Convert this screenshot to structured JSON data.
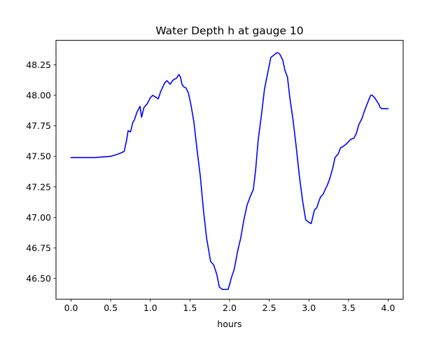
{
  "chart_data": {
    "type": "line",
    "title": "Water Depth h at gauge 10",
    "xlabel": "hours",
    "ylabel": "",
    "xlim": [
      -0.19,
      4.19
    ],
    "ylim": [
      46.33,
      48.45
    ],
    "grid": false,
    "x_ticks": [
      0.0,
      0.5,
      1.0,
      1.5,
      2.0,
      2.5,
      3.0,
      3.5,
      4.0
    ],
    "x_tick_labels": [
      "0.0",
      "0.5",
      "1.0",
      "1.5",
      "2.0",
      "2.5",
      "3.0",
      "3.5",
      "4.0"
    ],
    "y_ticks": [
      46.5,
      46.75,
      47.0,
      47.25,
      47.5,
      47.75,
      48.0,
      48.25
    ],
    "y_tick_labels": [
      "46.50",
      "46.75",
      "47.00",
      "47.25",
      "47.50",
      "47.75",
      "48.00",
      "48.25"
    ],
    "series": [
      {
        "color": "#0000ff",
        "x": [
          0.0,
          0.3,
          0.5,
          0.6,
          0.67,
          0.7,
          0.72,
          0.75,
          0.78,
          0.8,
          0.83,
          0.87,
          0.89,
          0.92,
          0.96,
          1.0,
          1.03,
          1.08,
          1.1,
          1.13,
          1.18,
          1.21,
          1.25,
          1.28,
          1.3,
          1.33,
          1.36,
          1.38,
          1.4,
          1.42,
          1.45,
          1.48,
          1.51,
          1.55,
          1.59,
          1.63,
          1.67,
          1.71,
          1.76,
          1.8,
          1.84,
          1.87,
          1.91,
          1.95,
          1.98,
          2.0,
          2.02,
          2.06,
          2.1,
          2.14,
          2.18,
          2.22,
          2.26,
          2.3,
          2.33,
          2.36,
          2.4,
          2.44,
          2.48,
          2.52,
          2.56,
          2.6,
          2.63,
          2.67,
          2.7,
          2.73,
          2.76,
          2.8,
          2.84,
          2.88,
          2.92,
          2.96,
          3.0,
          3.03,
          3.07,
          3.1,
          3.13,
          3.15,
          3.18,
          3.2,
          3.23,
          3.26,
          3.3,
          3.33,
          3.37,
          3.4,
          3.43,
          3.47,
          3.5,
          3.53,
          3.57,
          3.6,
          3.63,
          3.67,
          3.7,
          3.73,
          3.76,
          3.78,
          3.8,
          3.83,
          3.86,
          3.88,
          3.9,
          3.92,
          3.95,
          3.98,
          4.0
        ],
        "y": [
          47.49,
          47.49,
          47.5,
          47.52,
          47.54,
          47.63,
          47.71,
          47.7,
          47.78,
          47.8,
          47.86,
          47.91,
          47.82,
          47.9,
          47.93,
          47.98,
          48.0,
          47.98,
          47.97,
          48.03,
          48.1,
          48.12,
          48.09,
          48.12,
          48.13,
          48.14,
          48.17,
          48.15,
          48.09,
          48.07,
          48.06,
          48.02,
          47.93,
          47.78,
          47.55,
          47.34,
          47.06,
          46.83,
          46.64,
          46.61,
          46.53,
          46.43,
          46.41,
          46.41,
          46.41,
          46.45,
          46.5,
          46.58,
          46.72,
          46.83,
          46.98,
          47.1,
          47.17,
          47.23,
          47.4,
          47.63,
          47.83,
          48.05,
          48.18,
          48.31,
          48.33,
          48.35,
          48.34,
          48.29,
          48.2,
          48.15,
          47.98,
          47.8,
          47.58,
          47.34,
          47.14,
          46.98,
          46.96,
          46.95,
          47.06,
          47.08,
          47.14,
          47.17,
          47.19,
          47.22,
          47.26,
          47.31,
          47.4,
          47.49,
          47.52,
          47.57,
          47.58,
          47.6,
          47.62,
          47.64,
          47.65,
          47.69,
          47.76,
          47.81,
          47.87,
          47.92,
          47.97,
          48.0,
          48.0,
          47.98,
          47.95,
          47.93,
          47.9,
          47.89,
          47.89,
          47.89,
          47.89
        ]
      }
    ]
  }
}
